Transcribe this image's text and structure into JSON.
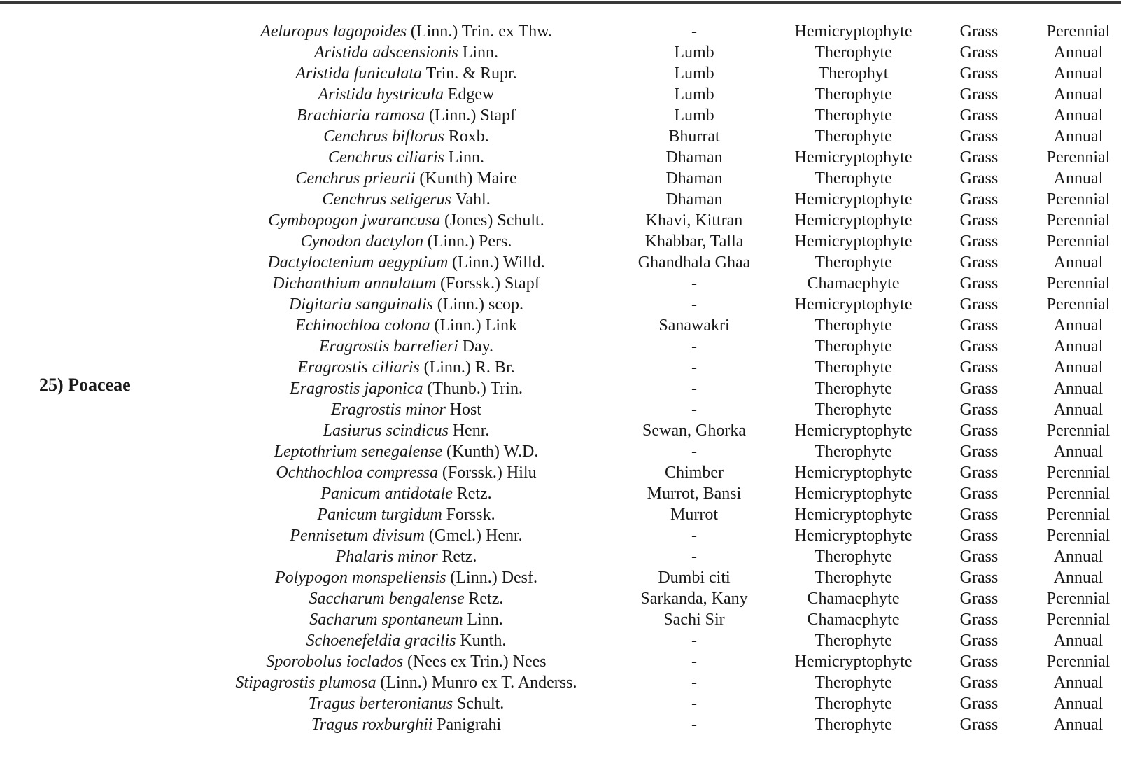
{
  "table": {
    "family_label": "25) Poaceae",
    "rows": [
      {
        "species": "Aeluropus lagopoides",
        "authority": "(Linn.) Trin. ex Thw.",
        "local_name": "-",
        "life_form": "Hemicryptophyte",
        "habit": "Grass",
        "duration": "Perennial"
      },
      {
        "species": "Aristida adscensionis",
        "authority": "Linn.",
        "local_name": "Lumb",
        "life_form": "Therophyte",
        "habit": "Grass",
        "duration": "Annual"
      },
      {
        "species": "Aristida funiculata",
        "authority": "Trin. & Rupr.",
        "local_name": "Lumb",
        "life_form": "Therophyt",
        "habit": "Grass",
        "duration": "Annual"
      },
      {
        "species": "Aristida hystricula",
        "authority": "Edgew",
        "local_name": "Lumb",
        "life_form": "Therophyte",
        "habit": "Grass",
        "duration": "Annual"
      },
      {
        "species": "Brachiaria ramosa",
        "authority": "(Linn.) Stapf",
        "local_name": "Lumb",
        "life_form": "Therophyte",
        "habit": "Grass",
        "duration": "Annual"
      },
      {
        "species": "Cenchrus biflorus",
        "authority": "Roxb.",
        "local_name": "Bhurrat",
        "life_form": "Therophyte",
        "habit": "Grass",
        "duration": "Annual"
      },
      {
        "species": "Cenchrus ciliaris",
        "authority": "Linn.",
        "local_name": "Dhaman",
        "life_form": "Hemicryptophyte",
        "habit": "Grass",
        "duration": "Perennial"
      },
      {
        "species": "Cenchrus prieurii",
        "authority": "(Kunth) Maire",
        "local_name": "Dhaman",
        "life_form": "Therophyte",
        "habit": "Grass",
        "duration": "Annual"
      },
      {
        "species": "Cenchrus setigerus",
        "authority": "Vahl.",
        "local_name": "Dhaman",
        "life_form": "Hemicryptophyte",
        "habit": "Grass",
        "duration": "Perennial"
      },
      {
        "species": "Cymbopogon jwarancusa",
        "authority": "(Jones) Schult.",
        "local_name": "Khavi, Kittran",
        "life_form": "Hemicryptophyte",
        "habit": "Grass",
        "duration": "Perennial"
      },
      {
        "species": "Cynodon dactylon",
        "authority": "(Linn.) Pers.",
        "local_name": "Khabbar, Talla",
        "life_form": "Hemicryptophyte",
        "habit": "Grass",
        "duration": "Perennial"
      },
      {
        "species": "Dactyloctenium aegyptium",
        "authority": "(Linn.) Willd.",
        "local_name": "Ghandhala Ghaa",
        "life_form": "Therophyte",
        "habit": "Grass",
        "duration": "Annual"
      },
      {
        "species": "Dichanthium annulatum",
        "authority": "(Forssk.) Stapf",
        "local_name": "-",
        "life_form": "Chamaephyte",
        "habit": "Grass",
        "duration": "Perennial"
      },
      {
        "species": "Digitaria sanguinalis",
        "authority": "(Linn.) scop.",
        "local_name": "-",
        "life_form": "Hemicryptophyte",
        "habit": "Grass",
        "duration": "Perennial"
      },
      {
        "species": "Echinochloa colona",
        "authority": "(Linn.) Link",
        "local_name": "Sanawakri",
        "life_form": "Therophyte",
        "habit": "Grass",
        "duration": "Annual"
      },
      {
        "species": "Eragrostis barrelieri",
        "authority": "Day.",
        "local_name": "-",
        "life_form": "Therophyte",
        "habit": "Grass",
        "duration": "Annual"
      },
      {
        "species": "Eragrostis ciliaris",
        "authority": "(Linn.) R. Br.",
        "local_name": "-",
        "life_form": "Therophyte",
        "habit": "Grass",
        "duration": "Annual"
      },
      {
        "species": "Eragrostis japonica",
        "authority": "(Thunb.) Trin.",
        "local_name": "-",
        "life_form": "Therophyte",
        "habit": "Grass",
        "duration": "Annual"
      },
      {
        "species": "Eragrostis minor",
        "authority": "Host",
        "local_name": "-",
        "life_form": "Therophyte",
        "habit": "Grass",
        "duration": "Annual"
      },
      {
        "species": "Lasiurus scindicus",
        "authority": "Henr.",
        "local_name": "Sewan, Ghorka",
        "life_form": "Hemicryptophyte",
        "habit": "Grass",
        "duration": "Perennial"
      },
      {
        "species": "Leptothrium senegalense",
        "authority": "(Kunth) W.D.",
        "local_name": "-",
        "life_form": "Therophyte",
        "habit": "Grass",
        "duration": "Annual"
      },
      {
        "species": "Ochthochloa compressa",
        "authority": "(Forssk.) Hilu",
        "local_name": "Chimber",
        "life_form": "Hemicryptophyte",
        "habit": "Grass",
        "duration": "Perennial"
      },
      {
        "species": "Panicum antidotale",
        "authority": "Retz.",
        "local_name": "Murrot, Bansi",
        "life_form": "Hemicryptophyte",
        "habit": "Grass",
        "duration": "Perennial"
      },
      {
        "species": "Panicum turgidum",
        "authority": "Forssk.",
        "local_name": "Murrot",
        "life_form": "Hemicryptophyte",
        "habit": "Grass",
        "duration": "Perennial"
      },
      {
        "species": "Pennisetum divisum",
        "authority": "(Gmel.) Henr.",
        "local_name": "-",
        "life_form": "Hemicryptophyte",
        "habit": "Grass",
        "duration": "Perennial"
      },
      {
        "species": "Phalaris minor",
        "authority": "Retz.",
        "local_name": "-",
        "life_form": "Therophyte",
        "habit": "Grass",
        "duration": "Annual"
      },
      {
        "species": "Polypogon monspeliensis",
        "authority": "(Linn.) Desf.",
        "local_name": "Dumbi citi",
        "life_form": "Therophyte",
        "habit": "Grass",
        "duration": "Annual"
      },
      {
        "species": "Saccharum bengalense",
        "authority": "Retz.",
        "local_name": "Sarkanda, Kany",
        "life_form": "Chamaephyte",
        "habit": "Grass",
        "duration": "Perennial"
      },
      {
        "species": "Sacharum spontaneum",
        "authority": "Linn.",
        "local_name": "Sachi Sir",
        "life_form": "Chamaephyte",
        "habit": "Grass",
        "duration": "Perennial"
      },
      {
        "species": "Schoenefeldia gracilis",
        "authority": "Kunth.",
        "local_name": "-",
        "life_form": "Therophyte",
        "habit": "Grass",
        "duration": "Annual"
      },
      {
        "species": "Sporobolus ioclados",
        "authority": "(Nees ex Trin.) Nees",
        "local_name": "-",
        "life_form": "Hemicryptophyte",
        "habit": "Grass",
        "duration": "Perennial"
      },
      {
        "species": "Stipagrostis plumosa",
        "authority": "(Linn.) Munro ex T. Anderss.",
        "local_name": "-",
        "life_form": "Therophyte",
        "habit": "Grass",
        "duration": "Annual"
      },
      {
        "species": "Tragus berteronianus",
        "authority": "Schult.",
        "local_name": "-",
        "life_form": "Therophyte",
        "habit": "Grass",
        "duration": "Annual"
      },
      {
        "species": "Tragus roxburghii",
        "authority": "Panigrahi",
        "local_name": "-",
        "life_form": "Therophyte",
        "habit": "Grass",
        "duration": "Annual"
      }
    ]
  }
}
